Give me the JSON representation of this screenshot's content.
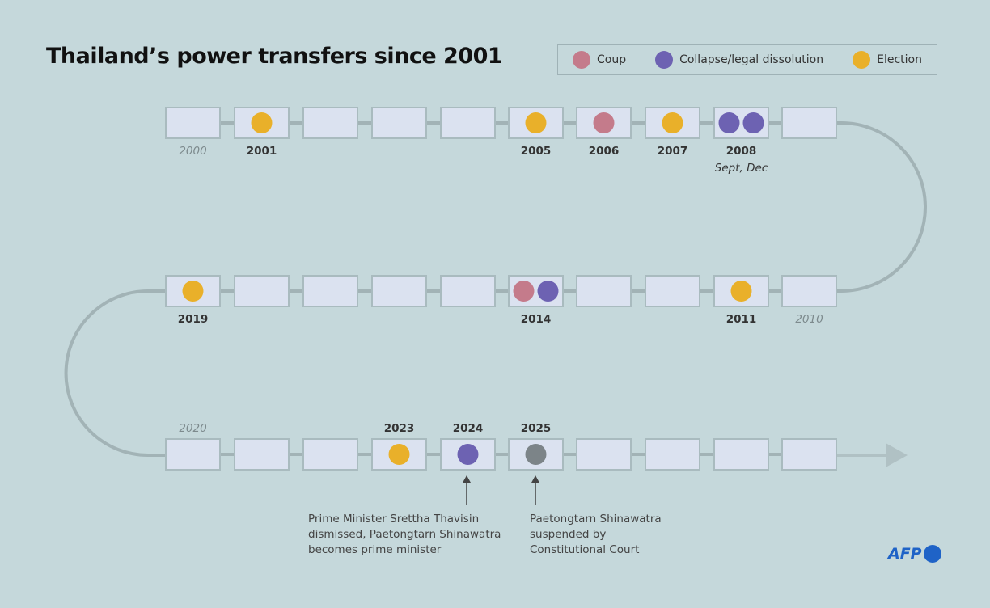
{
  "title": "Thailand’s power transfers since 2001",
  "legend": [
    {
      "key": "coup",
      "label": "Coup",
      "color": "#c47b8b"
    },
    {
      "key": "collapse",
      "label": "Collapse/legal dissolution",
      "color": "#6d62b2"
    },
    {
      "key": "election",
      "label": "Election",
      "color": "#e9b02a"
    }
  ],
  "pending_color": "#7c8488",
  "years": [
    {
      "year": 2000,
      "label": "2000",
      "decade": true,
      "events": []
    },
    {
      "year": 2001,
      "label": "2001",
      "events": [
        "election"
      ]
    },
    {
      "year": 2002,
      "events": []
    },
    {
      "year": 2003,
      "events": []
    },
    {
      "year": 2004,
      "events": []
    },
    {
      "year": 2005,
      "label": "2005",
      "events": [
        "election"
      ]
    },
    {
      "year": 2006,
      "label": "2006",
      "events": [
        "coup"
      ]
    },
    {
      "year": 2007,
      "label": "2007",
      "events": [
        "election"
      ]
    },
    {
      "year": 2008,
      "label": "2008",
      "sublabel": "Sept, Dec",
      "events": [
        "collapse",
        "collapse"
      ]
    },
    {
      "year": 2009,
      "events": []
    },
    {
      "year": 2010,
      "label": "2010",
      "decade": true,
      "events": []
    },
    {
      "year": 2011,
      "label": "2011",
      "events": [
        "election"
      ]
    },
    {
      "year": 2012,
      "events": []
    },
    {
      "year": 2013,
      "events": []
    },
    {
      "year": 2014,
      "label": "2014",
      "events": [
        "coup",
        "collapse"
      ]
    },
    {
      "year": 2015,
      "events": []
    },
    {
      "year": 2016,
      "events": []
    },
    {
      "year": 2017,
      "events": []
    },
    {
      "year": 2018,
      "events": []
    },
    {
      "year": 2019,
      "label": "2019",
      "events": [
        "election"
      ]
    },
    {
      "year": 2020,
      "label": "2020",
      "decade": true,
      "events": []
    },
    {
      "year": 2021,
      "events": []
    },
    {
      "year": 2022,
      "events": []
    },
    {
      "year": 2023,
      "label": "2023",
      "events": [
        "election"
      ]
    },
    {
      "year": 2024,
      "label": "2024",
      "events": [
        "collapse"
      ]
    },
    {
      "year": 2025,
      "label": "2025",
      "events": [
        "pending"
      ]
    },
    {
      "year": 2026,
      "events": []
    },
    {
      "year": 2027,
      "events": []
    },
    {
      "year": 2028,
      "events": []
    },
    {
      "year": 2029,
      "events": []
    }
  ],
  "notes": {
    "n2024": "Prime Minister Srettha Thavisin dismissed, Paetongtarn Shinawatra becomes prime minister",
    "n2025": "Paetongtarn Shinawatra suspended by Constitutional Court"
  },
  "logo": "AFP"
}
